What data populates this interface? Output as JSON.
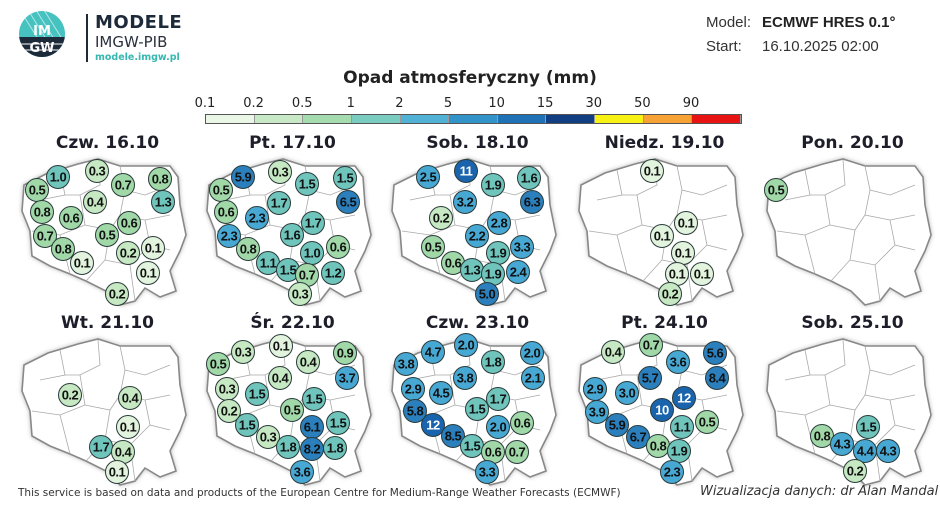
{
  "brand": {
    "logo_text_top": "IM",
    "logo_text_bottom": "GW",
    "name": "MODELE",
    "org": "IMGW-PIB",
    "url": "modele.imgw.pl"
  },
  "meta": {
    "model_label": "Model:",
    "model_value": "ECMWF HRES 0.1°",
    "start_label": "Start:",
    "start_value": "16.10.2025 02:00"
  },
  "legend": {
    "title": "Opad atmosferyczny (mm)",
    "ticks": [
      "0.1",
      "0.2",
      "0.5",
      "1",
      "2",
      "5",
      "10",
      "15",
      "30",
      "50",
      "90"
    ],
    "colors": [
      "#eaf6e6",
      "#c8e9c6",
      "#a4dcb0",
      "#7accc0",
      "#52b2d6",
      "#3193c8",
      "#1f72b6",
      "#123f82",
      "#f7f214",
      "#f6a234",
      "#e81414"
    ]
  },
  "circle_colors": {
    "lt0_2": "#e3f4de",
    "lt0_5": "#c6e8c2",
    "lt1": "#a0d8a8",
    "lt2": "#6fc4bc",
    "lt5": "#47a8d4",
    "lt10": "#2a7fbc",
    "ge10": "#1a64ae"
  },
  "maps": [
    {
      "title": "Czw. 16.10",
      "values": [
        "1.0",
        "0.3",
        "0.5",
        "0.7",
        "0.8",
        "0.4",
        "1.3",
        "0.8",
        "0.6",
        "0.6",
        "0.7",
        "0.5",
        "0.8",
        "0.1",
        "0.2",
        "0.1",
        "0.1",
        "0.2"
      ]
    },
    {
      "title": "Pt. 17.10",
      "values": [
        "5.9",
        "0.3",
        "0.5",
        "1.5",
        "1.5",
        "1.7",
        "6.5",
        "0.6",
        "2.3",
        "1.7",
        "2.3",
        "1.6",
        "0.8",
        "1.0",
        "0.6",
        "1.1",
        "1.5",
        "0.7",
        "1.2",
        "0.3"
      ]
    },
    {
      "title": "Sob. 18.10",
      "values": [
        "2.5",
        "11",
        "1.9",
        "1.6",
        "3.2",
        "6.3",
        "0.2",
        "2.8",
        "2.2",
        "0.5",
        "1.9",
        "3.3",
        "0.6",
        "1.3",
        "1.9",
        "2.4",
        "5.0"
      ]
    },
    {
      "title": "Niedz. 19.10",
      "values": [
        "0.1",
        "0.1",
        "0.1",
        "0.1",
        "0.1",
        "0.1",
        "0.2"
      ]
    },
    {
      "title": "Pon. 20.10",
      "values": [
        "0.5"
      ]
    },
    {
      "title": "Wt. 21.10",
      "values": [
        "0.2",
        "0.4",
        "0.1",
        "1.7",
        "0.4",
        "0.1"
      ]
    },
    {
      "title": "Śr. 22.10",
      "values": [
        "0.3",
        "0.1",
        "0.5",
        "0.4",
        "0.9",
        "0.4",
        "3.7",
        "0.3",
        "1.5",
        "1.5",
        "0.2",
        "0.5",
        "1.5",
        "6.1",
        "1.5",
        "0.3",
        "1.8",
        "8.2",
        "1.8",
        "3.6"
      ]
    },
    {
      "title": "Czw. 23.10",
      "values": [
        "4.7",
        "2.0",
        "3.8",
        "1.8",
        "2.0",
        "3.8",
        "2.1",
        "2.9",
        "4.5",
        "1.7",
        "1.5",
        "5.8",
        "12",
        "2.0",
        "0.6",
        "8.5",
        "1.5",
        "0.6",
        "0.7",
        "3.3"
      ]
    },
    {
      "title": "Pt. 24.10",
      "values": [
        "0.4",
        "0.7",
        "3.6",
        "5.6",
        "5.7",
        "8.4",
        "2.9",
        "3.0",
        "12",
        "3.9",
        "10",
        "5.9",
        "1.1",
        "0.5",
        "6.7",
        "0.8",
        "1.9",
        "2.3"
      ]
    },
    {
      "title": "Sob. 25.10",
      "values": [
        "1.5",
        "0.8",
        "4.3",
        "4.4",
        "4.3",
        "0.2"
      ]
    }
  ],
  "footer": {
    "source": "This service is based on data and products of the European Centre for Medium-Range Weather Forecasts (ECMWF)",
    "credit": "Wizualizacja danych: dr Alan Mandal"
  }
}
